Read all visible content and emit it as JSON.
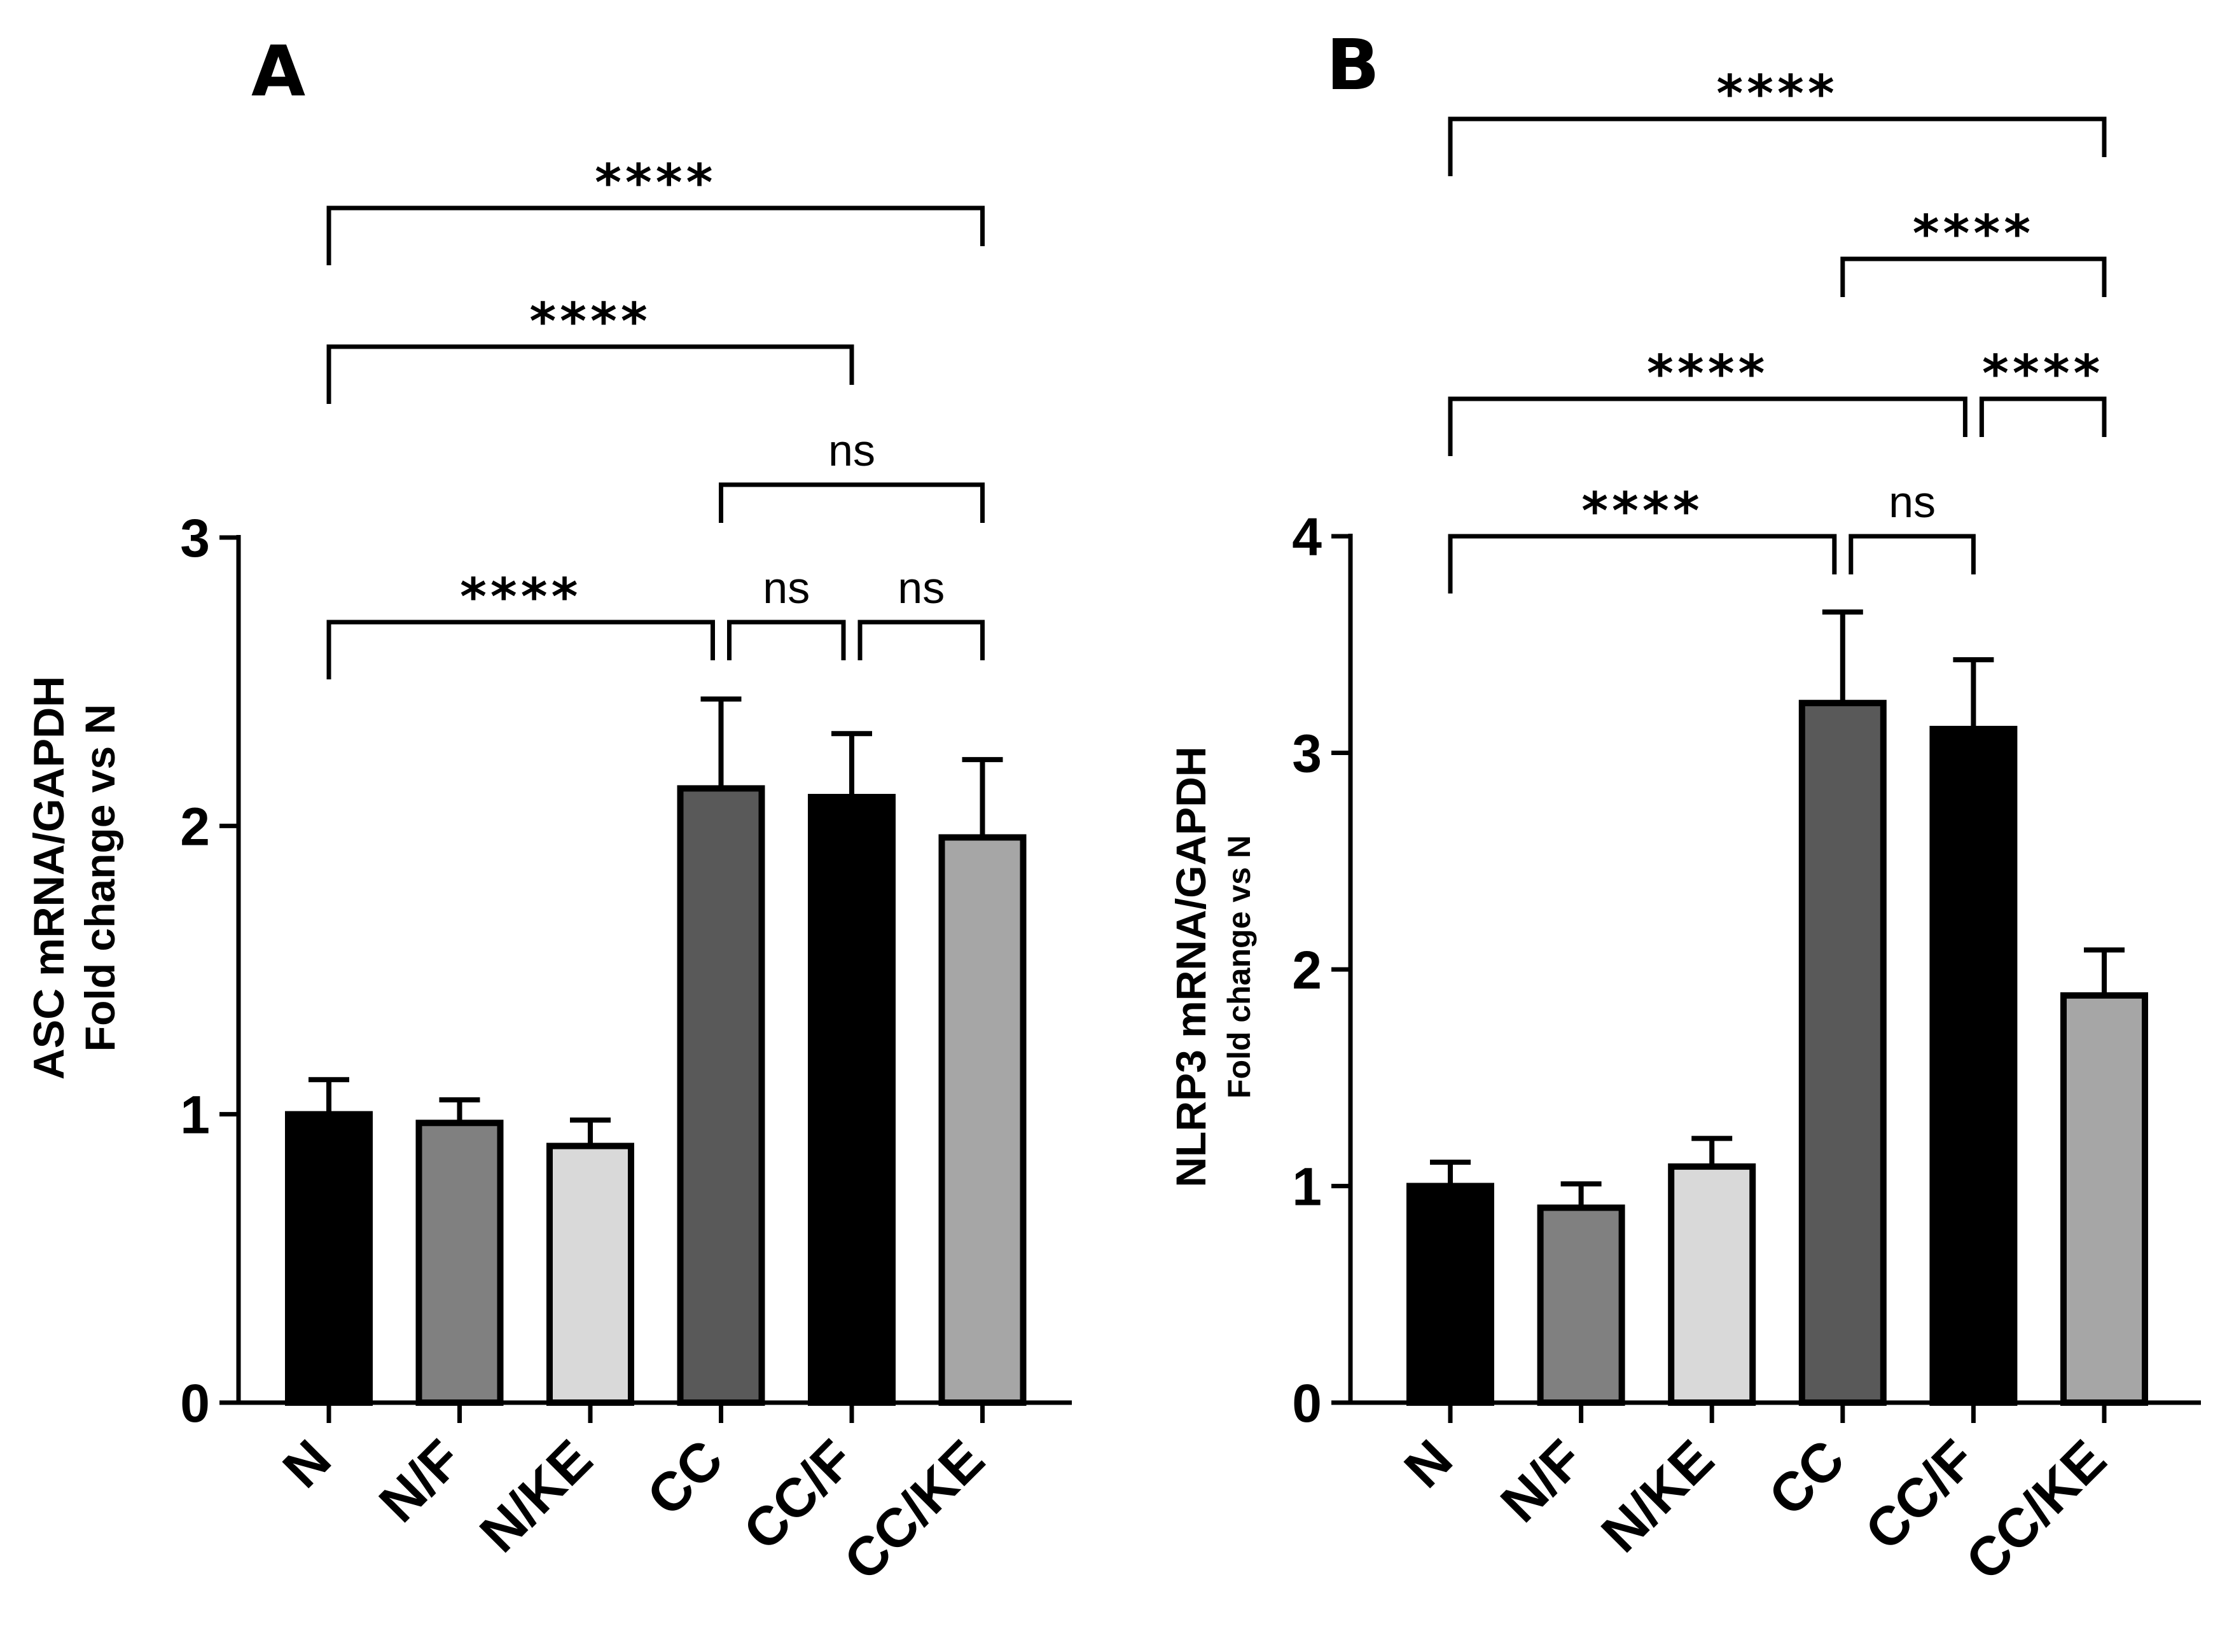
{
  "chart_data": [
    {
      "panel": "A",
      "type": "bar",
      "categories": [
        "N",
        "N/F",
        "N/KE",
        "CC",
        "CC/F",
        "CC/KE"
      ],
      "values": [
        1.0,
        0.97,
        0.89,
        2.13,
        2.1,
        1.96
      ],
      "errors": [
        0.12,
        0.08,
        0.09,
        0.31,
        0.22,
        0.27
      ],
      "colors": [
        "#000000",
        "#808080",
        "#d9d9d9",
        "#595959",
        "#000000",
        "#a6a6a6"
      ],
      "ylabel_line1": "ASC mRNA/GAPDH",
      "ylabel_line2": "Fold change vs N",
      "ylim": [
        0,
        3
      ],
      "yticks": [
        0,
        1,
        2,
        3
      ],
      "ytick_labels": [
        "0",
        "1",
        "2",
        "3"
      ],
      "comparisons": [
        {
          "from": 0,
          "to": 3,
          "label": "****",
          "level": 1
        },
        {
          "from": 3,
          "to": 4,
          "label": "ns",
          "level": 1
        },
        {
          "from": 4,
          "to": 5,
          "label": "ns",
          "level": 1
        },
        {
          "from": 3,
          "to": 5,
          "label": "ns",
          "level": 2
        },
        {
          "from": 0,
          "to": 4,
          "label": "****",
          "level": 3
        },
        {
          "from": 0,
          "to": 5,
          "label": "****",
          "level": 4
        }
      ]
    },
    {
      "panel": "B",
      "type": "bar",
      "categories": [
        "N",
        "N/F",
        "N/KE",
        "CC",
        "CC/F",
        "CC/KE"
      ],
      "values": [
        1.0,
        0.9,
        1.09,
        3.23,
        3.11,
        1.88
      ],
      "errors": [
        0.11,
        0.11,
        0.13,
        0.42,
        0.32,
        0.21
      ],
      "colors": [
        "#000000",
        "#808080",
        "#d9d9d9",
        "#595959",
        "#000000",
        "#a6a6a6"
      ],
      "ylabel_line1": "NLRP3 mRNA/GAPDH",
      "ylabel_line2": "Fold change vs N",
      "ylim": [
        0,
        4
      ],
      "yticks": [
        0,
        1,
        2,
        3,
        4
      ],
      "ytick_labels": [
        "0",
        "1",
        "2",
        "3",
        "4"
      ],
      "comparisons": [
        {
          "from": 0,
          "to": 3,
          "label": "****",
          "level": 1
        },
        {
          "from": 3,
          "to": 4,
          "label": "ns",
          "level": 1
        },
        {
          "from": 0,
          "to": 4,
          "label": "****",
          "level": 2
        },
        {
          "from": 4,
          "to": 5,
          "label": "****",
          "level": 2
        },
        {
          "from": 3,
          "to": 5,
          "label": "****",
          "level": 3
        },
        {
          "from": 0,
          "to": 5,
          "label": "****",
          "level": 4
        }
      ]
    }
  ]
}
